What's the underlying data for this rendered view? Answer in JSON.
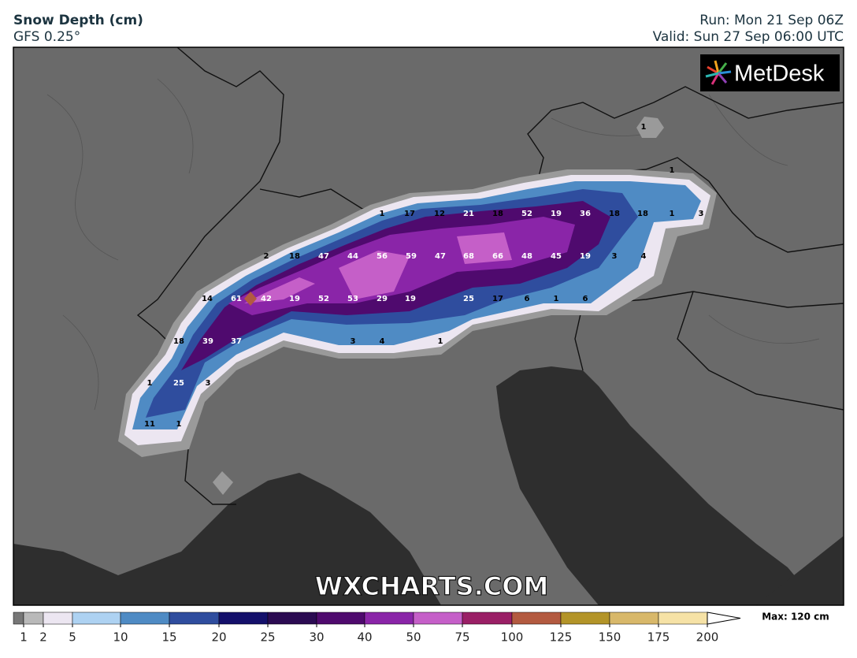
{
  "header": {
    "title": "Snow Depth (cm)",
    "model": "GFS 0.25°",
    "run": "Run: Mon 21 Sep 06Z",
    "valid": "Valid: Sun 27 Sep 06:00 UTC"
  },
  "logo": "MetDesk",
  "watermark": "WXCHARTS.COM",
  "map": {
    "labels": [
      1,
      1,
      1,
      17,
      12,
      21,
      18,
      52,
      19,
      36,
      18,
      18,
      1,
      3,
      2,
      18,
      47,
      44,
      56,
      59,
      47,
      68,
      66,
      48,
      45,
      19,
      3,
      4,
      14,
      61,
      42,
      19,
      52,
      53,
      29,
      19,
      25,
      17,
      6,
      1,
      6,
      18,
      39,
      37,
      3,
      4,
      1,
      1,
      25,
      3,
      11,
      1
    ]
  },
  "colorbar": {
    "levels": [
      1,
      2,
      5,
      10,
      15,
      20,
      25,
      30,
      40,
      50,
      75,
      100,
      125,
      150,
      175,
      200
    ],
    "under_color": "#777777",
    "colors": [
      "#b9b9b9",
      "#ece6f1",
      "#aed2f2",
      "#4f8bc4",
      "#2f4d9e",
      "#14106b",
      "#2b0b52",
      "#4f0a6e",
      "#8a25a8",
      "#c55fc8",
      "#9a1f66",
      "#b35a40",
      "#b39428",
      "#d8b86a",
      "#f6e2a6"
    ],
    "max_label": "Max: 120 cm"
  }
}
